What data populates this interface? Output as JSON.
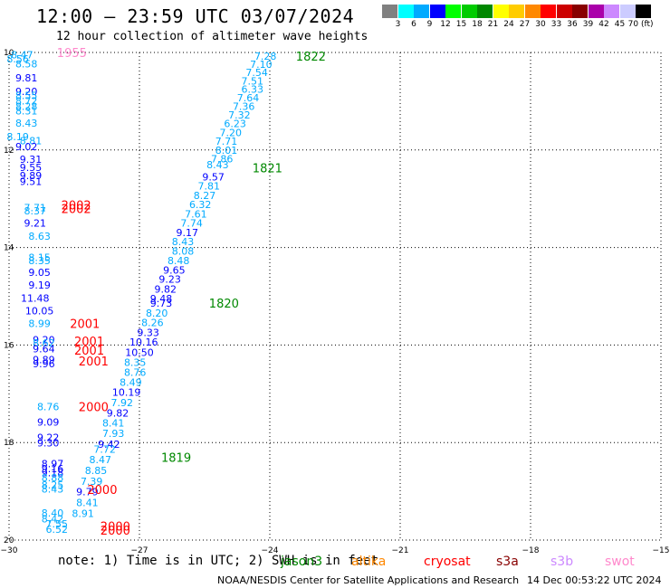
{
  "header": {
    "title": "12:00 – 23:59 UTC 03/07/2024",
    "subtitle": "12 hour collection of altimeter wave heights"
  },
  "color_scale": {
    "colors": [
      "#808080",
      "#00ffff",
      "#00aaff",
      "#0000ff",
      "#00ff00",
      "#00cc00",
      "#008800",
      "#ffff00",
      "#ffcc00",
      "#ff8800",
      "#ff0000",
      "#cc0000",
      "#880000",
      "#aa00aa",
      "#cc88ff",
      "#ccccff",
      "#000000"
    ],
    "labels": [
      "3",
      "6",
      "9",
      "12",
      "15",
      "18",
      "21",
      "24",
      "27",
      "30",
      "33",
      "36",
      "39",
      "42",
      "45",
      "70 (ft)"
    ]
  },
  "footer": {
    "note": "note:  1) Time is in UTC; 2) SWH is in feet",
    "credit": "NOAA/NESDIS Center for Satellite Applications and Research",
    "timestamp": "14 Dec 00:53:22 UTC 2024"
  },
  "legend": [
    {
      "name": "jason3",
      "color": "#008800"
    },
    {
      "name": "altika",
      "color": "#ff8800"
    },
    {
      "name": "cryosat",
      "color": "#ff0000"
    },
    {
      "name": "s3a",
      "color": "#880000"
    },
    {
      "name": "s3b",
      "color": "#cc88ff"
    },
    {
      "name": "swot",
      "color": "#ff88cc"
    }
  ],
  "chart_data": {
    "type": "scatter",
    "xlim": [
      -30,
      -15
    ],
    "ylim": [
      -20,
      -10
    ],
    "x_ticks": [
      -30,
      -27,
      -24,
      -21,
      -18,
      -15
    ],
    "y_ticks": [
      -10,
      -12,
      -14,
      -16,
      -18,
      -20
    ],
    "x_tick_labels": [
      "−30",
      "−27",
      "−24",
      "−21",
      "−18",
      "−15"
    ],
    "y_tick_labels": [
      "10",
      "12",
      "14",
      "16",
      "18",
      "20"
    ],
    "grid": true,
    "points": [
      {
        "x": -29.7,
        "y": -10.05,
        "v": "8.47",
        "c": "#00aaff"
      },
      {
        "x": -29.8,
        "y": -10.13,
        "v": "8.56",
        "c": "#00aaff"
      },
      {
        "x": -29.6,
        "y": -10.23,
        "v": "8.58",
        "c": "#00aaff"
      },
      {
        "x": -29.6,
        "y": -10.52,
        "v": "9.81",
        "c": "#0000ff"
      },
      {
        "x": -29.6,
        "y": -10.8,
        "v": "9.20",
        "c": "#0000ff"
      },
      {
        "x": -29.6,
        "y": -10.88,
        "v": "8.55",
        "c": "#00aaff"
      },
      {
        "x": -29.6,
        "y": -10.99,
        "v": "8.72",
        "c": "#00aaff"
      },
      {
        "x": -29.6,
        "y": -11.1,
        "v": "8.28",
        "c": "#00aaff"
      },
      {
        "x": -29.6,
        "y": -11.2,
        "v": "8.31",
        "c": "#00aaff"
      },
      {
        "x": -29.6,
        "y": -11.45,
        "v": "8.43",
        "c": "#00aaff"
      },
      {
        "x": -29.8,
        "y": -11.73,
        "v": "8.19",
        "c": "#00aaff"
      },
      {
        "x": -29.5,
        "y": -11.81,
        "v": "8.81",
        "c": "#00aaff"
      },
      {
        "x": -29.6,
        "y": -11.93,
        "v": "9.02",
        "c": "#0000ff"
      },
      {
        "x": -29.5,
        "y": -12.19,
        "v": "9.31",
        "c": "#0000ff"
      },
      {
        "x": -29.5,
        "y": -12.36,
        "v": "9.55",
        "c": "#0000ff"
      },
      {
        "x": -29.5,
        "y": -12.52,
        "v": "9.89",
        "c": "#0000ff"
      },
      {
        "x": -29.5,
        "y": -12.64,
        "v": "9.51",
        "c": "#0000ff"
      },
      {
        "x": -29.4,
        "y": -13.18,
        "v": "7.71",
        "c": "#00aaff"
      },
      {
        "x": -29.4,
        "y": -13.25,
        "v": "8.37",
        "c": "#00aaff"
      },
      {
        "x": -29.4,
        "y": -13.5,
        "v": "9.21",
        "c": "#0000ff"
      },
      {
        "x": -29.3,
        "y": -13.77,
        "v": "8.63",
        "c": "#00aaff"
      },
      {
        "x": -29.3,
        "y": -14.2,
        "v": "8.15",
        "c": "#00aaff"
      },
      {
        "x": -29.3,
        "y": -14.27,
        "v": "8.35",
        "c": "#00aaff"
      },
      {
        "x": -29.3,
        "y": -14.51,
        "v": "9.05",
        "c": "#0000ff"
      },
      {
        "x": -29.3,
        "y": -14.77,
        "v": "9.19",
        "c": "#0000ff"
      },
      {
        "x": -29.4,
        "y": -15.04,
        "v": "11.48",
        "c": "#0000ff"
      },
      {
        "x": -29.3,
        "y": -15.3,
        "v": "10.05",
        "c": "#0000ff"
      },
      {
        "x": -29.3,
        "y": -15.56,
        "v": "8.99",
        "c": "#00aaff"
      },
      {
        "x": -29.2,
        "y": -15.89,
        "v": "9.20",
        "c": "#0000ff"
      },
      {
        "x": -29.2,
        "y": -15.96,
        "v": "8.62",
        "c": "#00aaff"
      },
      {
        "x": -29.2,
        "y": -16.08,
        "v": "9.64",
        "c": "#0000ff"
      },
      {
        "x": -29.2,
        "y": -16.3,
        "v": "9.89",
        "c": "#0000ff"
      },
      {
        "x": -29.2,
        "y": -16.38,
        "v": "9.96",
        "c": "#0000ff"
      },
      {
        "x": -29.1,
        "y": -17.26,
        "v": "8.76",
        "c": "#00aaff"
      },
      {
        "x": -29.1,
        "y": -17.58,
        "v": "9.09",
        "c": "#0000ff"
      },
      {
        "x": -29.1,
        "y": -17.89,
        "v": "9.22",
        "c": "#0000ff"
      },
      {
        "x": -29.1,
        "y": -18.01,
        "v": "9.30",
        "c": "#0000ff"
      },
      {
        "x": -29.0,
        "y": -18.43,
        "v": "8.97",
        "c": "#0000ff"
      },
      {
        "x": -29.0,
        "y": -18.53,
        "v": "9.16",
        "c": "#0000ff"
      },
      {
        "x": -29.0,
        "y": -18.62,
        "v": "9.18",
        "c": "#0000ff"
      },
      {
        "x": -29.0,
        "y": -18.72,
        "v": "8.88",
        "c": "#00aaff"
      },
      {
        "x": -29.0,
        "y": -18.87,
        "v": "8.25",
        "c": "#00aaff"
      },
      {
        "x": -29.0,
        "y": -18.95,
        "v": "8.43",
        "c": "#00aaff"
      },
      {
        "x": -29.0,
        "y": -19.44,
        "v": "8.40",
        "c": "#00aaff"
      },
      {
        "x": -29.0,
        "y": -19.56,
        "v": "8.42",
        "c": "#00aaff"
      },
      {
        "x": -28.9,
        "y": -19.67,
        "v": "7.55",
        "c": "#00aaff"
      },
      {
        "x": -28.9,
        "y": -19.78,
        "v": "6.52",
        "c": "#00aaff"
      },
      {
        "x": -24.1,
        "y": -10.07,
        "v": "7.28",
        "c": "#00aaff"
      },
      {
        "x": -24.2,
        "y": -10.24,
        "v": "7.10",
        "c": "#00aaff"
      },
      {
        "x": -24.3,
        "y": -10.41,
        "v": "7.54",
        "c": "#00aaff"
      },
      {
        "x": -24.4,
        "y": -10.58,
        "v": "7.51",
        "c": "#00aaff"
      },
      {
        "x": -24.4,
        "y": -10.75,
        "v": "6.33",
        "c": "#00aaff"
      },
      {
        "x": -24.5,
        "y": -10.93,
        "v": "7.64",
        "c": "#00aaff"
      },
      {
        "x": -24.6,
        "y": -11.1,
        "v": "7.36",
        "c": "#00aaff"
      },
      {
        "x": -24.7,
        "y": -11.28,
        "v": "7.32",
        "c": "#00aaff"
      },
      {
        "x": -24.8,
        "y": -11.46,
        "v": "6.23",
        "c": "#00aaff"
      },
      {
        "x": -24.9,
        "y": -11.64,
        "v": "7.20",
        "c": "#00aaff"
      },
      {
        "x": -25.0,
        "y": -11.82,
        "v": "7.71",
        "c": "#00aaff"
      },
      {
        "x": -25.0,
        "y": -12.0,
        "v": "8.01",
        "c": "#00aaff"
      },
      {
        "x": -25.1,
        "y": -12.18,
        "v": "7.86",
        "c": "#00aaff"
      },
      {
        "x": -25.2,
        "y": -12.3,
        "v": "8.43",
        "c": "#00aaff"
      },
      {
        "x": -25.3,
        "y": -12.55,
        "v": "9.57",
        "c": "#0000ff"
      },
      {
        "x": -25.4,
        "y": -12.74,
        "v": "7.81",
        "c": "#00aaff"
      },
      {
        "x": -25.5,
        "y": -12.93,
        "v": "8.27",
        "c": "#00aaff"
      },
      {
        "x": -25.6,
        "y": -13.12,
        "v": "6.32",
        "c": "#00aaff"
      },
      {
        "x": -25.7,
        "y": -13.31,
        "v": "7.61",
        "c": "#00aaff"
      },
      {
        "x": -25.8,
        "y": -13.5,
        "v": "7.74",
        "c": "#00aaff"
      },
      {
        "x": -25.9,
        "y": -13.69,
        "v": "9.17",
        "c": "#0000ff"
      },
      {
        "x": -26.0,
        "y": -13.88,
        "v": "8.43",
        "c": "#00aaff"
      },
      {
        "x": -26.0,
        "y": -14.07,
        "v": "8.08",
        "c": "#00aaff"
      },
      {
        "x": -26.1,
        "y": -14.27,
        "v": "8.48",
        "c": "#00aaff"
      },
      {
        "x": -26.2,
        "y": -14.46,
        "v": "9.65",
        "c": "#0000ff"
      },
      {
        "x": -26.3,
        "y": -14.65,
        "v": "9.23",
        "c": "#0000ff"
      },
      {
        "x": -26.4,
        "y": -14.85,
        "v": "9.82",
        "c": "#0000ff"
      },
      {
        "x": -26.5,
        "y": -15.05,
        "v": "9.48",
        "c": "#0000ff"
      },
      {
        "x": -26.5,
        "y": -15.14,
        "v": "9.73",
        "c": "#0000ff"
      },
      {
        "x": -26.6,
        "y": -15.34,
        "v": "8.20",
        "c": "#00aaff"
      },
      {
        "x": -26.7,
        "y": -15.54,
        "v": "8.26",
        "c": "#00aaff"
      },
      {
        "x": -26.8,
        "y": -15.74,
        "v": "9.33",
        "c": "#0000ff"
      },
      {
        "x": -26.9,
        "y": -15.94,
        "v": "10.16",
        "c": "#0000ff"
      },
      {
        "x": -27.0,
        "y": -16.15,
        "v": "10.50",
        "c": "#0000ff"
      },
      {
        "x": -27.1,
        "y": -16.35,
        "v": "8.35",
        "c": "#00aaff"
      },
      {
        "x": -27.1,
        "y": -16.56,
        "v": "8.76",
        "c": "#00aaff"
      },
      {
        "x": -27.2,
        "y": -16.76,
        "v": "8.49",
        "c": "#00aaff"
      },
      {
        "x": -27.3,
        "y": -16.97,
        "v": "10.19",
        "c": "#0000ff"
      },
      {
        "x": -27.4,
        "y": -17.18,
        "v": "7.92",
        "c": "#00aaff"
      },
      {
        "x": -27.5,
        "y": -17.39,
        "v": "9.82",
        "c": "#0000ff"
      },
      {
        "x": -27.6,
        "y": -17.6,
        "v": "8.41",
        "c": "#00aaff"
      },
      {
        "x": -27.6,
        "y": -17.81,
        "v": "7.93",
        "c": "#00aaff"
      },
      {
        "x": -27.7,
        "y": -18.03,
        "v": "9.42",
        "c": "#0000ff"
      },
      {
        "x": -27.8,
        "y": -18.14,
        "v": "7.72",
        "c": "#00aaff"
      },
      {
        "x": -27.9,
        "y": -18.35,
        "v": "8.47",
        "c": "#00aaff"
      },
      {
        "x": -28.0,
        "y": -18.57,
        "v": "8.85",
        "c": "#00aaff"
      },
      {
        "x": -28.1,
        "y": -18.79,
        "v": "7.39",
        "c": "#00aaff"
      },
      {
        "x": -28.2,
        "y": -19.01,
        "v": "9.79",
        "c": "#0000ff"
      },
      {
        "x": -28.2,
        "y": -19.23,
        "v": "8.41",
        "c": "#00aaff"
      },
      {
        "x": -28.3,
        "y": -19.45,
        "v": "8.91",
        "c": "#00aaff"
      }
    ],
    "pass_labels": [
      {
        "x": -28.9,
        "y": -10.0,
        "t": "1955",
        "c": "#ff88cc"
      },
      {
        "x": -23.4,
        "y": -10.07,
        "t": "1822",
        "c": "#008800"
      },
      {
        "x": -24.4,
        "y": -12.37,
        "t": "1821",
        "c": "#008800"
      },
      {
        "x": -25.4,
        "y": -15.14,
        "t": "1820",
        "c": "#008800"
      },
      {
        "x": -26.5,
        "y": -18.3,
        "t": "1819",
        "c": "#008800"
      },
      {
        "x": -28.8,
        "y": -13.13,
        "t": "2002",
        "c": "#ff0000"
      },
      {
        "x": -28.8,
        "y": -13.2,
        "t": "2002",
        "c": "#ff0000"
      },
      {
        "x": -28.6,
        "y": -15.56,
        "t": "2001",
        "c": "#ff0000"
      },
      {
        "x": -28.5,
        "y": -15.92,
        "t": "2001",
        "c": "#ff0000"
      },
      {
        "x": -28.5,
        "y": -16.1,
        "t": "2001",
        "c": "#ff0000"
      },
      {
        "x": -28.4,
        "y": -16.33,
        "t": "2001",
        "c": "#ff0000"
      },
      {
        "x": -28.4,
        "y": -17.26,
        "t": "2000",
        "c": "#ff0000"
      },
      {
        "x": -28.2,
        "y": -18.96,
        "t": "2000",
        "c": "#ff0000"
      },
      {
        "x": -27.9,
        "y": -19.71,
        "t": "2000",
        "c": "#ff0000"
      },
      {
        "x": -27.9,
        "y": -19.8,
        "t": "2000",
        "c": "#ff0000"
      }
    ]
  }
}
